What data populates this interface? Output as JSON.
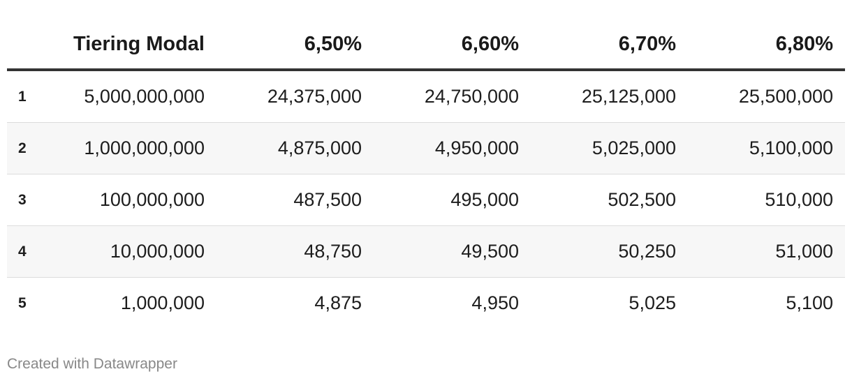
{
  "chart_data": {
    "type": "table",
    "columns": [
      "",
      "Tiering Modal",
      "6,50%",
      "6,60%",
      "6,70%",
      "6,80%"
    ],
    "rows": [
      [
        "1",
        "5,000,000,000",
        "24,375,000",
        "24,750,000",
        "25,125,000",
        "25,500,000"
      ],
      [
        "2",
        "1,000,000,000",
        "4,875,000",
        "4,950,000",
        "5,025,000",
        "5,100,000"
      ],
      [
        "3",
        "100,000,000",
        "487,500",
        "495,000",
        "502,500",
        "510,000"
      ],
      [
        "4",
        "10,000,000",
        "48,750",
        "49,500",
        "50,250",
        "51,000"
      ],
      [
        "5",
        "1,000,000",
        "4,875",
        "4,950",
        "5,025",
        "5,100"
      ]
    ]
  },
  "footer": {
    "credit": "Created with Datawrapper"
  },
  "colors": {
    "header_rule": "#333333",
    "stripe": "#f7f7f7",
    "row_divider": "#dcdcdc",
    "footer_text": "#888888"
  }
}
